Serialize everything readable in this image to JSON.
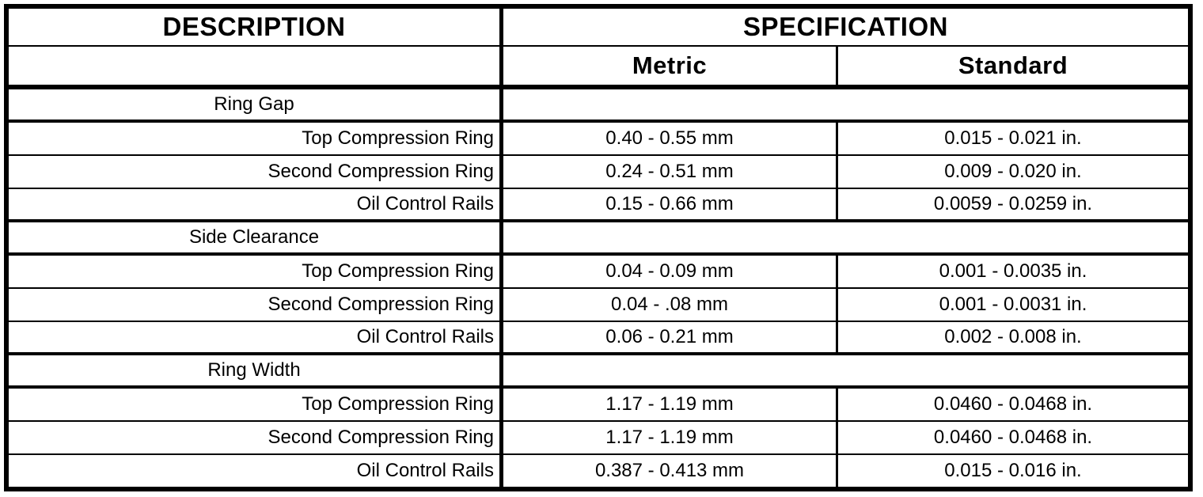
{
  "table": {
    "header": {
      "description": "DESCRIPTION",
      "specification": "SPECIFICATION",
      "metric": "Metric",
      "standard": "Standard"
    },
    "sections": [
      {
        "title": "Ring Gap",
        "rows": [
          {
            "label": "Top Compression Ring",
            "metric": "0.40 - 0.55 mm",
            "standard": "0.015 - 0.021 in."
          },
          {
            "label": "Second Compression Ring",
            "metric": "0.24 - 0.51 mm",
            "standard": "0.009 - 0.020 in."
          },
          {
            "label": "Oil Control Rails",
            "metric": "0.15 - 0.66 mm",
            "standard": "0.0059 - 0.0259 in."
          }
        ]
      },
      {
        "title": "Side Clearance",
        "rows": [
          {
            "label": "Top Compression Ring",
            "metric": "0.04 - 0.09 mm",
            "standard": "0.001 - 0.0035 in."
          },
          {
            "label": "Second Compression Ring",
            "metric": "0.04 - .08 mm",
            "standard": "0.001 - 0.0031 in."
          },
          {
            "label": "Oil Control Rails",
            "metric": "0.06 - 0.21 mm",
            "standard": "0.002 - 0.008 in."
          }
        ]
      },
      {
        "title": "Ring Width",
        "rows": [
          {
            "label": "Top Compression Ring",
            "metric": "1.17 - 1.19 mm",
            "standard": "0.0460 - 0.0468 in."
          },
          {
            "label": "Second Compression Ring",
            "metric": "1.17 - 1.19 mm",
            "standard": "0.0460 - 0.0468 in."
          },
          {
            "label": "Oil Control Rails",
            "metric": "0.387 - 0.413 mm",
            "standard": "0.015 - 0.016 in."
          }
        ]
      }
    ],
    "colors": {
      "border": "#000000",
      "text": "#000000",
      "background": "#ffffff"
    }
  }
}
